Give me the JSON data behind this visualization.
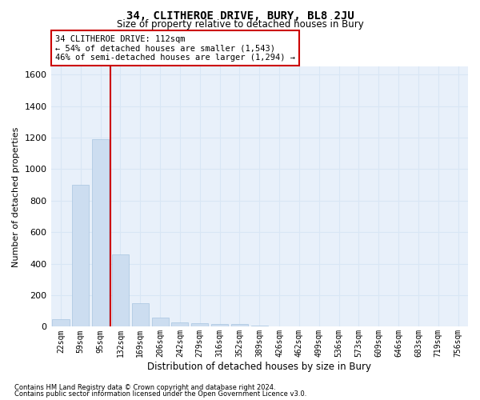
{
  "title": "34, CLITHEROE DRIVE, BURY, BL8 2JU",
  "subtitle": "Size of property relative to detached houses in Bury",
  "xlabel": "Distribution of detached houses by size in Bury",
  "ylabel": "Number of detached properties",
  "footnote1": "Contains HM Land Registry data © Crown copyright and database right 2024.",
  "footnote2": "Contains public sector information licensed under the Open Government Licence v3.0.",
  "annotation_line1": "34 CLITHEROE DRIVE: 112sqm",
  "annotation_line2": "← 54% of detached houses are smaller (1,543)",
  "annotation_line3": "46% of semi-detached houses are larger (1,294) →",
  "bar_color": "#ccddf0",
  "bar_edge_color": "#a8c4e0",
  "vline_color": "#cc0000",
  "grid_color": "#d8e6f5",
  "bg_color": "#e8f0fa",
  "categories": [
    "22sqm",
    "59sqm",
    "95sqm",
    "132sqm",
    "169sqm",
    "206sqm",
    "242sqm",
    "279sqm",
    "316sqm",
    "352sqm",
    "389sqm",
    "426sqm",
    "462sqm",
    "499sqm",
    "536sqm",
    "573sqm",
    "609sqm",
    "646sqm",
    "683sqm",
    "719sqm",
    "756sqm"
  ],
  "values": [
    50,
    900,
    1190,
    460,
    150,
    60,
    30,
    20,
    15,
    15,
    5,
    0,
    0,
    0,
    0,
    0,
    0,
    0,
    0,
    0,
    0
  ],
  "ylim": [
    0,
    1650
  ],
  "yticks": [
    0,
    200,
    400,
    600,
    800,
    1000,
    1200,
    1400,
    1600
  ],
  "vline_x_idx": 2.5
}
